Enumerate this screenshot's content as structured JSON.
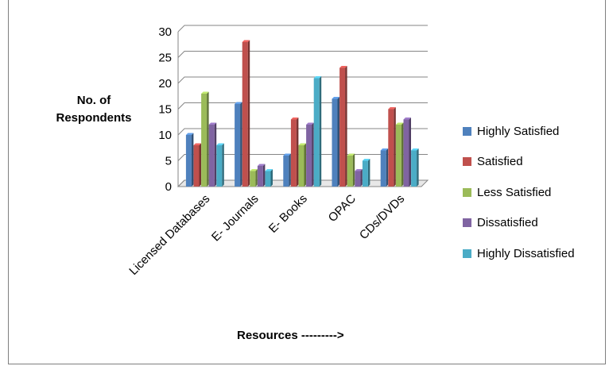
{
  "chart_data": {
    "type": "bar",
    "title": "",
    "ylabel_lines": [
      "No. of",
      "Respondents"
    ],
    "xlabel": "Resources --------->",
    "categories": [
      "Licensed Databases",
      "E- Journals",
      "E- Books",
      "OPAC",
      "CDs/DVDs"
    ],
    "ylim": [
      0,
      30
    ],
    "yticks": [
      0,
      5,
      10,
      15,
      20,
      25,
      30
    ],
    "grid": true,
    "legend_position": "right",
    "series": [
      {
        "name": "Highly Satisfied",
        "color": "#4f81bd",
        "values": [
          10,
          16,
          6,
          17,
          7
        ]
      },
      {
        "name": "Satisfied",
        "color": "#c0504d",
        "values": [
          8,
          28,
          13,
          23,
          15
        ]
      },
      {
        "name": "Less Satisfied",
        "color": "#9bbb59",
        "values": [
          18,
          3,
          8,
          6,
          12
        ]
      },
      {
        "name": "Dissatisfied",
        "color": "#8064a2",
        "values": [
          12,
          4,
          12,
          3,
          13
        ]
      },
      {
        "name": "Highly Dissatisfied",
        "color": "#4bacc6",
        "values": [
          8,
          3,
          21,
          5,
          7
        ]
      }
    ]
  }
}
